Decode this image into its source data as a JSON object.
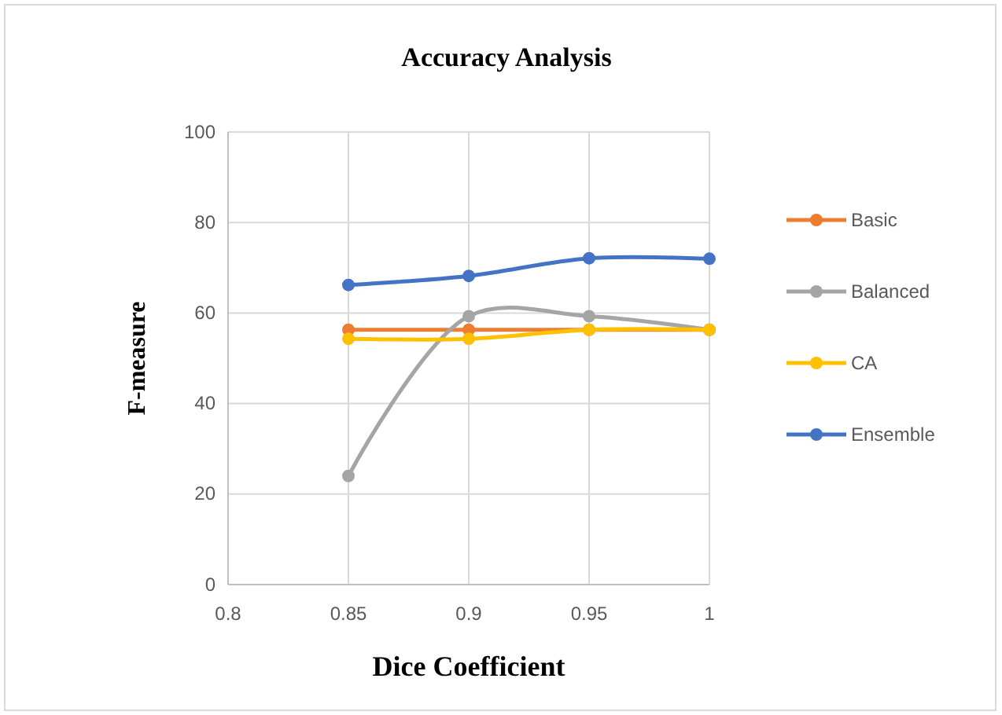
{
  "chart_data": {
    "type": "line",
    "title": "Accuracy Analysis",
    "xlabel": "Dice Coefficient",
    "ylabel": "F-measure",
    "x": [
      0.85,
      0.9,
      0.95,
      1
    ],
    "series": [
      {
        "name": "Basic",
        "color": "#ed7d31",
        "values": [
          56.3,
          56.3,
          56.3,
          56.3
        ]
      },
      {
        "name": "Balanced",
        "color": "#a5a5a5",
        "values": [
          24.0,
          59.3,
          59.3,
          56.3
        ]
      },
      {
        "name": "CA",
        "color": "#ffc000",
        "values": [
          54.3,
          54.3,
          56.3,
          56.3
        ]
      },
      {
        "name": "Ensemble",
        "color": "#4472c4",
        "values": [
          66.2,
          68.2,
          72.1,
          72.0
        ]
      }
    ],
    "xlim": [
      0.8,
      1
    ],
    "xticks": [
      0.8,
      0.85,
      0.9,
      0.95,
      1
    ],
    "ylim": [
      0,
      100
    ],
    "yticks": [
      0,
      20,
      40,
      60,
      80,
      100
    ],
    "grid": true,
    "legend": "right",
    "marker": "circle",
    "line_style": "solid"
  }
}
